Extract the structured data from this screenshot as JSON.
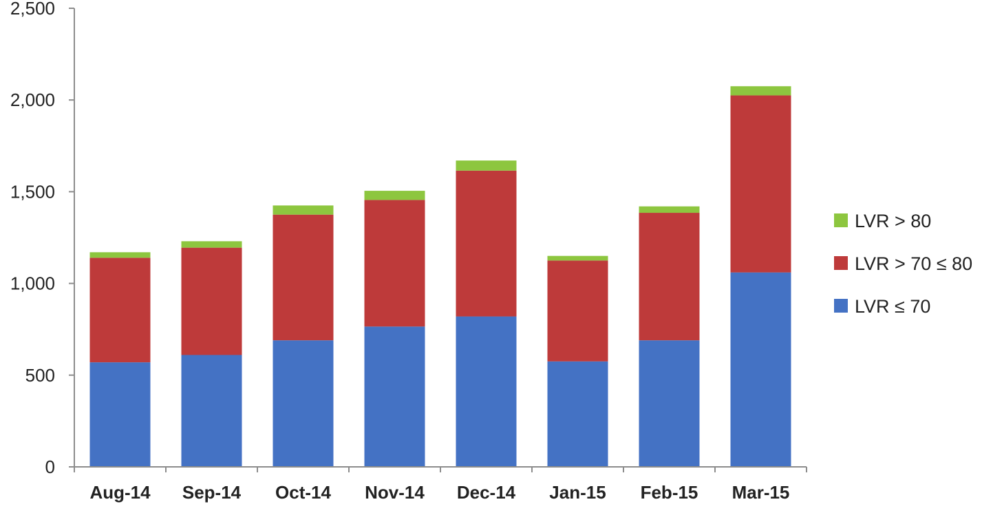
{
  "chart_data": {
    "type": "bar",
    "stacked": true,
    "categories": [
      "Aug-14",
      "Sep-14",
      "Oct-14",
      "Nov-14",
      "Dec-14",
      "Jan-15",
      "Feb-15",
      "Mar-15"
    ],
    "series": [
      {
        "name": "LVR ≤ 70",
        "color": "#4472c4",
        "values": [
          570,
          610,
          690,
          765,
          820,
          575,
          690,
          1060
        ]
      },
      {
        "name": "LVR > 70 ≤ 80",
        "color": "#be3a3a",
        "values": [
          570,
          585,
          685,
          690,
          795,
          550,
          695,
          965
        ]
      },
      {
        "name": "LVR > 80",
        "color": "#8dc63f",
        "values": [
          30,
          35,
          50,
          50,
          55,
          25,
          35,
          50
        ]
      }
    ],
    "legend_order": [
      "LVR > 80",
      "LVR > 70 ≤ 80",
      "LVR ≤ 70"
    ],
    "ylim": [
      0,
      2500
    ],
    "yticks": [
      0,
      500,
      1000,
      1500,
      2000,
      2500
    ],
    "ytick_labels": [
      "0",
      "500",
      "1,000",
      "1,500",
      "2,000",
      "2,500"
    ],
    "legend_position": "right",
    "grid": false,
    "title": "",
    "xlabel": "",
    "ylabel": ""
  }
}
